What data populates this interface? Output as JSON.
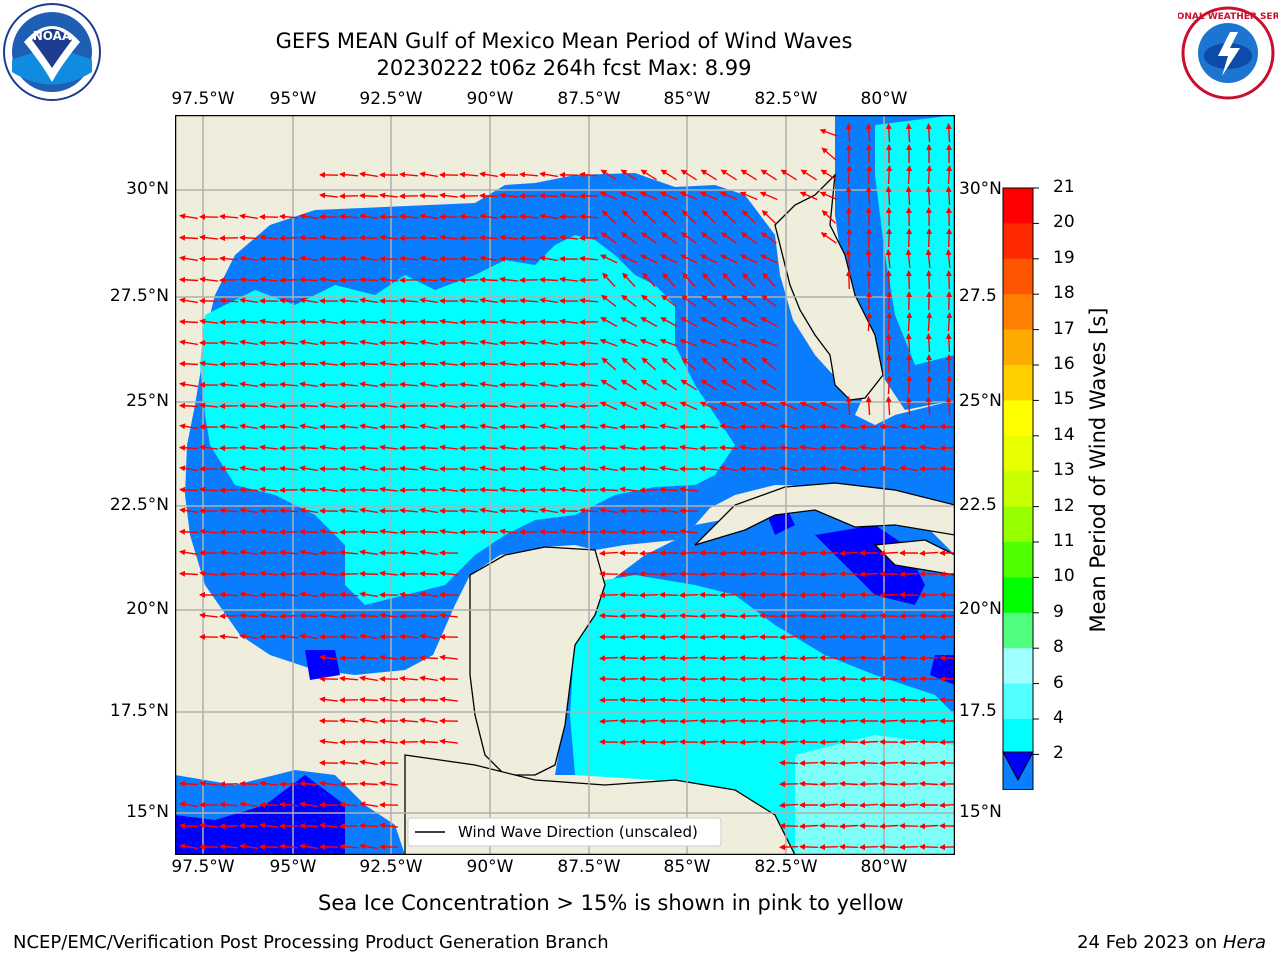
{
  "header": {
    "title_line1": "GEFS MEAN Gulf of Mexico Mean Period of Wind Waves",
    "title_line2": "20230222 t06z 264h fcst   Max: 8.99"
  },
  "logos": {
    "left": "NOAA",
    "right": "NATIONAL WEATHER SERVICE"
  },
  "map": {
    "lon_labels": [
      "97.5°W",
      "95°W",
      "92.5°W",
      "90°W",
      "87.5°W",
      "85°W",
      "82.5°W",
      "80°W"
    ],
    "lat_labels_left": [
      "30°N",
      "27.5°N",
      "25°N",
      "22.5°N",
      "20°N",
      "17.5°N",
      "15°N"
    ],
    "lat_labels_right": [
      "30°N",
      "27.5",
      "25°N",
      "22.5",
      "20°N",
      "17.5",
      "15°N"
    ],
    "legend_label": "Wind Wave Direction (unscaled)",
    "colors": {
      "land": "#efeddb",
      "deep_blue": "#0000ff",
      "blue": "#0a7dff",
      "cyan": "#00ffff",
      "light_cyan": "#7dfff8",
      "arrow": "#ff0000"
    }
  },
  "colorbar": {
    "label": "Mean Period of Wind Waves [s]",
    "ticks": [
      "21",
      "20",
      "19",
      "18",
      "17",
      "16",
      "15",
      "14",
      "13",
      "12",
      "11",
      "10",
      "9",
      "8",
      "6",
      "4",
      "2"
    ],
    "colors": [
      "#ff0000",
      "#ff2a00",
      "#ff5500",
      "#ff8000",
      "#ffaa00",
      "#ffd000",
      "#ffff00",
      "#e8ff00",
      "#c8ff00",
      "#96ff00",
      "#50ff00",
      "#00ff00",
      "#50ff80",
      "#a0ffff",
      "#50ffff",
      "#00ffff",
      "#0a80ff"
    ]
  },
  "notes": {
    "sea_ice": "Sea Ice Concentration > 15% is shown in pink to yellow"
  },
  "footer": {
    "left": "NCEP/EMC/Verification Post Processing Product Generation Branch",
    "right_prefix": "24 Feb 2023 on ",
    "right_host": "Hera"
  }
}
